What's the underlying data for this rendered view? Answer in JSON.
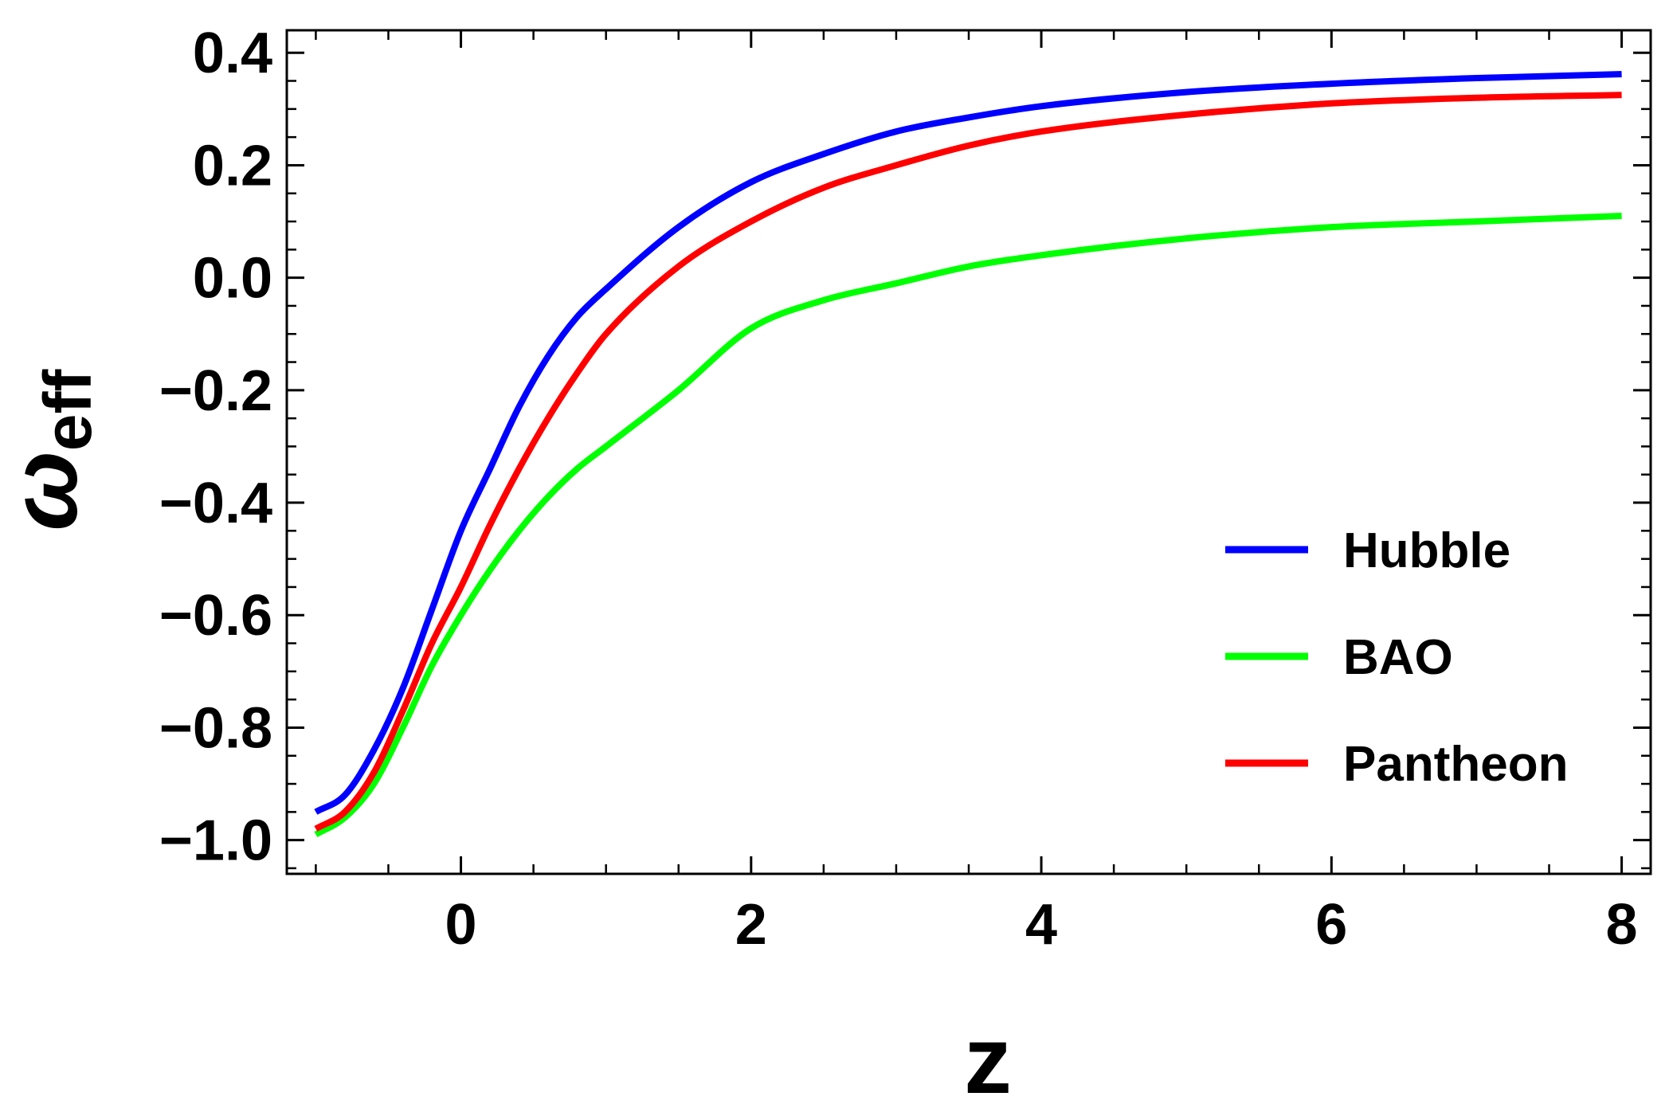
{
  "chart_data": {
    "type": "line",
    "xlabel": "z",
    "ylabel_main": "ω",
    "ylabel_sub": "eff",
    "xlim": [
      -1.2,
      8.2
    ],
    "ylim": [
      -1.06,
      0.44
    ],
    "x_ticks": [
      0,
      2,
      4,
      6,
      8
    ],
    "x_tick_labels": [
      "0",
      "2",
      "4",
      "6",
      "8"
    ],
    "y_ticks": [
      -1.0,
      -0.8,
      -0.6,
      -0.4,
      -0.2,
      0.0,
      0.2,
      0.4
    ],
    "y_tick_labels": [
      "−1.0",
      "−0.8",
      "−0.6",
      "−0.4",
      "−0.2",
      "0.0",
      "0.2",
      "0.4"
    ],
    "grid": false,
    "legend_position": "lower-right",
    "series": [
      {
        "name": "Hubble",
        "color": "#0000ff",
        "x": [
          -1.0,
          -0.8,
          -0.6,
          -0.4,
          -0.2,
          0.0,
          0.2,
          0.4,
          0.6,
          0.8,
          1.0,
          1.5,
          2.0,
          2.5,
          3.0,
          3.5,
          4.0,
          5.0,
          6.0,
          7.0,
          8.0
        ],
        "y": [
          -0.95,
          -0.92,
          -0.84,
          -0.73,
          -0.59,
          -0.45,
          -0.34,
          -0.23,
          -0.14,
          -0.07,
          -0.02,
          0.09,
          0.17,
          0.22,
          0.26,
          0.285,
          0.305,
          0.33,
          0.345,
          0.355,
          0.362
        ]
      },
      {
        "name": "BAO",
        "color": "#00ff00",
        "x": [
          -1.0,
          -0.8,
          -0.6,
          -0.4,
          -0.2,
          0.0,
          0.2,
          0.4,
          0.6,
          0.8,
          1.0,
          1.5,
          2.0,
          2.5,
          3.0,
          3.5,
          4.0,
          5.0,
          6.0,
          7.0,
          8.0
        ],
        "y": [
          -0.99,
          -0.96,
          -0.9,
          -0.8,
          -0.69,
          -0.6,
          -0.52,
          -0.45,
          -0.39,
          -0.34,
          -0.3,
          -0.2,
          -0.09,
          -0.04,
          -0.01,
          0.02,
          0.04,
          0.07,
          0.09,
          0.1,
          0.11
        ]
      },
      {
        "name": "Pantheon",
        "color": "#ff0000",
        "x": [
          -1.0,
          -0.8,
          -0.6,
          -0.4,
          -0.2,
          0.0,
          0.2,
          0.4,
          0.6,
          0.8,
          1.0,
          1.5,
          2.0,
          2.5,
          3.0,
          3.5,
          4.0,
          5.0,
          6.0,
          7.0,
          8.0
        ],
        "y": [
          -0.98,
          -0.95,
          -0.88,
          -0.77,
          -0.65,
          -0.55,
          -0.44,
          -0.34,
          -0.25,
          -0.17,
          -0.1,
          0.02,
          0.1,
          0.16,
          0.2,
          0.235,
          0.26,
          0.29,
          0.31,
          0.32,
          0.325
        ]
      }
    ]
  }
}
